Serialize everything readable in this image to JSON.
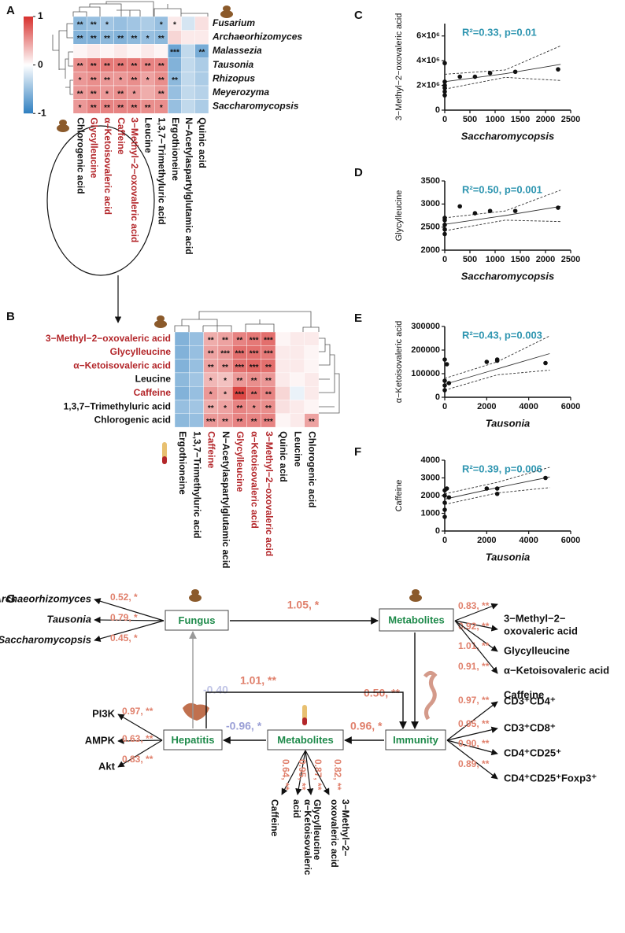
{
  "chart_data": [
    {
      "type": "heatmap",
      "panel": "A",
      "rows": [
        "Fusarium",
        "Archaeorhizomyces",
        "Malassezia",
        "Tausonia",
        "Rhizopus",
        "Meyerozyma",
        "Saccharomycopsis"
      ],
      "columns": [
        "Chlorogenic acid",
        "Glycylleucine",
        "α−Ketoisovaleric acid",
        "Caffeine",
        "3−Methyl−2−oxovaleric acid",
        "Leucine",
        "1,3,7−Trimethyluric acid",
        "Ergothioneine",
        "N−Acetylaspartylglutamic acid",
        "Quinic acid"
      ],
      "column_label_colors": [
        "#111111",
        "#b3262a",
        "#b3262a",
        "#b3262a",
        "#b3262a",
        "#111111",
        "#111111",
        "#111111",
        "#111111",
        "#111111"
      ],
      "values": [
        [
          -0.55,
          -0.5,
          -0.45,
          -0.5,
          -0.45,
          -0.4,
          -0.5,
          0.1,
          -0.2,
          0.15
        ],
        [
          -0.6,
          -0.6,
          -0.55,
          -0.6,
          -0.55,
          -0.5,
          -0.55,
          0.2,
          0.1,
          0.1
        ],
        [
          0.05,
          0.1,
          0.05,
          0.1,
          0.05,
          0.1,
          0.05,
          -0.7,
          -0.3,
          -0.65
        ],
        [
          0.55,
          0.65,
          0.65,
          0.65,
          0.65,
          0.6,
          0.6,
          -0.6,
          -0.3,
          -0.4
        ],
        [
          0.5,
          0.55,
          0.5,
          0.5,
          0.55,
          0.45,
          0.55,
          -0.55,
          -0.3,
          -0.4
        ],
        [
          0.5,
          0.55,
          0.5,
          0.55,
          0.5,
          0.4,
          0.5,
          -0.5,
          -0.3,
          -0.35
        ],
        [
          0.5,
          0.6,
          0.6,
          0.6,
          0.6,
          0.55,
          0.55,
          -0.5,
          -0.3,
          -0.4
        ]
      ],
      "stars": [
        [
          "**",
          "**",
          "*",
          null,
          null,
          null,
          "*",
          "*",
          null,
          null
        ],
        [
          "**",
          "**",
          "**",
          "**",
          "**",
          "*",
          "**",
          null,
          null,
          null
        ],
        [
          null,
          null,
          null,
          null,
          null,
          null,
          null,
          "***",
          null,
          "**"
        ],
        [
          "**",
          "**",
          "**",
          "**",
          "**",
          "**",
          "**",
          null,
          null,
          null
        ],
        [
          "*",
          "**",
          "**",
          "*",
          "**",
          "*",
          "**",
          "**",
          null,
          null
        ],
        [
          "**",
          "**",
          "*",
          "**",
          "*",
          null,
          "**",
          null,
          null,
          null
        ],
        [
          "*",
          "**",
          "**",
          "**",
          "**",
          "**",
          "*",
          null,
          null,
          null
        ]
      ],
      "zlim": [
        -1,
        1
      ],
      "zticks": [
        1,
        0,
        -1
      ]
    },
    {
      "type": "heatmap",
      "panel": "B",
      "rows": [
        "3−Methyl−2−oxovaleric acid",
        "Glycylleucine",
        "α−Ketoisovaleric acid",
        "Leucine",
        "Caffeine",
        "1,3,7−Trimethyluric acid",
        "Chlorogenic acid"
      ],
      "row_label_colors": [
        "#b3262a",
        "#b3262a",
        "#b3262a",
        "#111111",
        "#b3262a",
        "#111111",
        "#111111"
      ],
      "columns": [
        "Ergothioneine",
        "1,3,7−Trimethyluric acid",
        "Caffeine",
        "N−Acetylaspartylglutamic acid",
        "Glycylleucine",
        "α−Ketoisovaleric acid",
        "3−Methyl−2−oxovaleric acid",
        "Quinic acid",
        "Leucine",
        "Chlorogenic acid"
      ],
      "column_label_colors": [
        "#111111",
        "#111111",
        "#b3262a",
        "#111111",
        "#b3262a",
        "#b3262a",
        "#b3262a",
        "#111111",
        "#111111",
        "#111111"
      ],
      "values": [
        [
          -0.6,
          -0.5,
          0.4,
          0.45,
          0.6,
          0.65,
          0.7,
          0.05,
          0.1,
          0.1
        ],
        [
          -0.6,
          -0.5,
          0.45,
          0.5,
          0.7,
          0.7,
          0.65,
          0.1,
          0.1,
          0.05
        ],
        [
          -0.6,
          -0.5,
          0.45,
          0.5,
          0.7,
          0.75,
          0.7,
          0.1,
          0.1,
          0.05
        ],
        [
          -0.55,
          -0.45,
          0.35,
          0.3,
          0.5,
          0.55,
          0.5,
          0.1,
          0.05,
          0.1
        ],
        [
          -0.6,
          -0.5,
          0.5,
          0.4,
          0.9,
          0.7,
          0.6,
          0.2,
          -0.1,
          0.1
        ],
        [
          -0.5,
          -0.45,
          0.4,
          0.45,
          0.6,
          0.55,
          0.55,
          0.15,
          0.1,
          0.05
        ],
        [
          -0.55,
          -0.5,
          0.5,
          0.5,
          0.6,
          0.6,
          0.6,
          0.05,
          0.1,
          0.45
        ]
      ],
      "stars": [
        [
          null,
          null,
          "**",
          "**",
          "**",
          "***",
          "***",
          null,
          null,
          null
        ],
        [
          null,
          null,
          "**",
          "***",
          "***",
          "***",
          "***",
          null,
          null,
          null
        ],
        [
          null,
          null,
          "**",
          "**",
          "***",
          "***",
          "**",
          null,
          null,
          null
        ],
        [
          null,
          null,
          "*",
          "*",
          "**",
          "**",
          "**",
          null,
          null,
          null
        ],
        [
          null,
          null,
          "*",
          "*",
          "***",
          "**",
          "**",
          null,
          null,
          null
        ],
        [
          null,
          null,
          "**",
          "*",
          "**",
          "*",
          "**",
          null,
          null,
          null
        ],
        [
          null,
          null,
          "***",
          "**",
          "**",
          "**",
          "***",
          null,
          null,
          "**"
        ]
      ],
      "zlim": [
        -1,
        1
      ]
    },
    {
      "type": "scatter",
      "panel": "C",
      "annotation": "R²=0.33, p=0.01",
      "x_label": "Saccharomycopsis",
      "y_label": "3−Methyl−2−oxovaleric acid",
      "x": [
        0,
        0,
        0,
        0,
        0,
        0,
        300,
        600,
        900,
        1400,
        2250
      ],
      "y": [
        1200000,
        1500000,
        1800000,
        2000000,
        2300000,
        3800000,
        2700000,
        2700000,
        3000000,
        3100000,
        3300000
      ],
      "fit": {
        "x": [
          0,
          1200,
          2300
        ],
        "y": [
          2300000,
          2950000,
          3700000
        ]
      },
      "ci_upper": {
        "x": [
          0,
          1200,
          2300
        ],
        "y": [
          2900000,
          3250000,
          5200000
        ]
      },
      "ci_lower": {
        "x": [
          0,
          1200,
          2300
        ],
        "y": [
          1700000,
          2650000,
          2400000
        ]
      },
      "xlim": [
        0,
        2500
      ],
      "xticks": [
        0,
        500,
        1000,
        1500,
        2000,
        2500
      ],
      "ylim": [
        0,
        7000000
      ],
      "yticks": [
        0,
        {
          "value": 2000000,
          "label": "2×10⁶"
        },
        {
          "value": 4000000,
          "label": "4×10⁶"
        },
        {
          "value": 6000000,
          "label": "6×10⁶"
        }
      ]
    },
    {
      "type": "scatter",
      "panel": "D",
      "annotation": "R²=0.50, p=0.001",
      "x_label": "Saccharomycopsis",
      "y_label": "Glycylleucine",
      "x": [
        0,
        0,
        0,
        0,
        0,
        300,
        600,
        900,
        1400,
        2250
      ],
      "y": [
        2350,
        2450,
        2550,
        2650,
        2700,
        2950,
        2800,
        2850,
        2850,
        2920
      ],
      "fit": {
        "x": [
          0,
          1200,
          2300
        ],
        "y": [
          2560,
          2750,
          2950
        ]
      },
      "ci_upper": {
        "x": [
          0,
          1200,
          2300
        ],
        "y": [
          2700,
          2850,
          3300
        ]
      },
      "ci_lower": {
        "x": [
          0,
          1200,
          2300
        ],
        "y": [
          2420,
          2650,
          2620
        ]
      },
      "xlim": [
        0,
        2500
      ],
      "xticks": [
        0,
        500,
        1000,
        1500,
        2000,
        2500
      ],
      "ylim": [
        2000,
        3500
      ],
      "yticks": [
        2000,
        2500,
        3000,
        3500
      ]
    },
    {
      "type": "scatter",
      "panel": "E",
      "annotation": "R²=0.43, p=0.003",
      "x_label": "Tausonia",
      "y_label": "α−Ketoisovaleric acid",
      "x": [
        0,
        0,
        0,
        0,
        100,
        200,
        2000,
        2500,
        2500,
        4800
      ],
      "y": [
        30000,
        50000,
        70000,
        160000,
        140000,
        60000,
        150000,
        155000,
        160000,
        145000
      ],
      "fit": {
        "x": [
          0,
          2500,
          5000
        ],
        "y": [
          55000,
          120000,
          185000
        ]
      },
      "ci_upper": {
        "x": [
          0,
          2500,
          5000
        ],
        "y": [
          80000,
          150000,
          260000
        ]
      },
      "ci_lower": {
        "x": [
          0,
          2500,
          5000
        ],
        "y": [
          30000,
          95000,
          115000
        ]
      },
      "xlim": [
        0,
        6000
      ],
      "xticks": [
        0,
        2000,
        4000,
        6000
      ],
      "ylim": [
        0,
        300000
      ],
      "yticks": [
        0,
        100000,
        200000,
        300000
      ]
    },
    {
      "type": "scatter",
      "panel": "F",
      "annotation": "R²=0.39, p=0.006",
      "x_label": "Tausonia",
      "y_label": "Caffeine",
      "x": [
        0,
        0,
        0,
        0,
        0,
        100,
        200,
        2000,
        2500,
        2500,
        4800
      ],
      "y": [
        800,
        1200,
        1600,
        2000,
        2300,
        2400,
        1900,
        2400,
        2100,
        2400,
        3000
      ],
      "fit": {
        "x": [
          0,
          2500,
          5000
        ],
        "y": [
          1800,
          2450,
          3050
        ]
      },
      "ci_upper": {
        "x": [
          0,
          2500,
          5000
        ],
        "y": [
          2100,
          2750,
          3600
        ]
      },
      "ci_lower": {
        "x": [
          0,
          2500,
          5000
        ],
        "y": [
          1500,
          2150,
          2450
        ]
      },
      "xlim": [
        0,
        6000
      ],
      "xticks": [
        0,
        2000,
        4000,
        6000
      ],
      "ylim": [
        0,
        4000
      ],
      "yticks": [
        0,
        1000,
        2000,
        3000,
        4000
      ]
    }
  ],
  "diagram": {
    "panel": "G",
    "nodes": [
      "Fungus",
      "Metabolites",
      "Hepatitis",
      "Metabolites",
      "Immunity"
    ],
    "paths": [
      {
        "from": 0,
        "to": 1,
        "label": "1.05, *"
      },
      {
        "from": 1,
        "to": 4,
        "label": "0.50, **"
      },
      {
        "from": 4,
        "to": 3,
        "label": "0.96, *"
      },
      {
        "from": 3,
        "to": 2,
        "label": "-0.96, *"
      },
      {
        "from": 2,
        "to": 0,
        "label": "-0.40"
      },
      {
        "from": 2,
        "to": 4,
        "label": "1.01, **"
      }
    ],
    "loadings": [
      {
        "node": 0,
        "items": [
          {
            "name": [
              "Archaeorhizomyces"
            ],
            "label": "0.52, *"
          },
          {
            "name": [
              "Tausonia"
            ],
            "label": "0.79, *"
          },
          {
            "name": [
              "Saccharomycopsis"
            ],
            "label": "0.45, *"
          }
        ]
      },
      {
        "node": 1,
        "items": [
          {
            "name": [
              "3−Methyl−2−",
              "oxovaleric acid"
            ],
            "label": "0.83, **"
          },
          {
            "name": [
              "Glycylleucine"
            ],
            "label": "0.92, **"
          },
          {
            "name": [
              "α−Ketoisovaleric acid"
            ],
            "label": "1.01, **"
          },
          {
            "name": [
              "Caffeine"
            ],
            "label": "0.91, **"
          }
        ]
      },
      {
        "node": 4,
        "items": [
          {
            "name": [
              "CD3⁺CD4⁺"
            ],
            "label": "0.97, **"
          },
          {
            "name": [
              "CD3⁺CD8⁺"
            ],
            "label": "0.95, **"
          },
          {
            "name": [
              "CD4⁺CD25⁺"
            ],
            "label": "0.90, **"
          },
          {
            "name": [
              "CD4⁺CD25⁺Foxp3⁺"
            ],
            "label": "0.89, **"
          }
        ]
      },
      {
        "node": 2,
        "items": [
          {
            "name": [
              "PI3K"
            ],
            "label": "0.97, **"
          },
          {
            "name": [
              "AMPK"
            ],
            "label": "0.63, **"
          },
          {
            "name": [
              "Akt"
            ],
            "label": "0.83, **"
          }
        ]
      },
      {
        "node": 3,
        "items": [
          {
            "name": [
              "Caffeine"
            ],
            "label": "0.64, **"
          },
          {
            "name": [
              "α−Ketoisovaleric",
              "acid"
            ],
            "label": "0.95, **"
          },
          {
            "name": [
              "Glycylleucine"
            ],
            "label": "0.87, **"
          },
          {
            "name": [
              "3−Methyl−2−",
              "oxovaleric acid"
            ],
            "label": "0.82, **"
          }
        ]
      }
    ]
  }
}
